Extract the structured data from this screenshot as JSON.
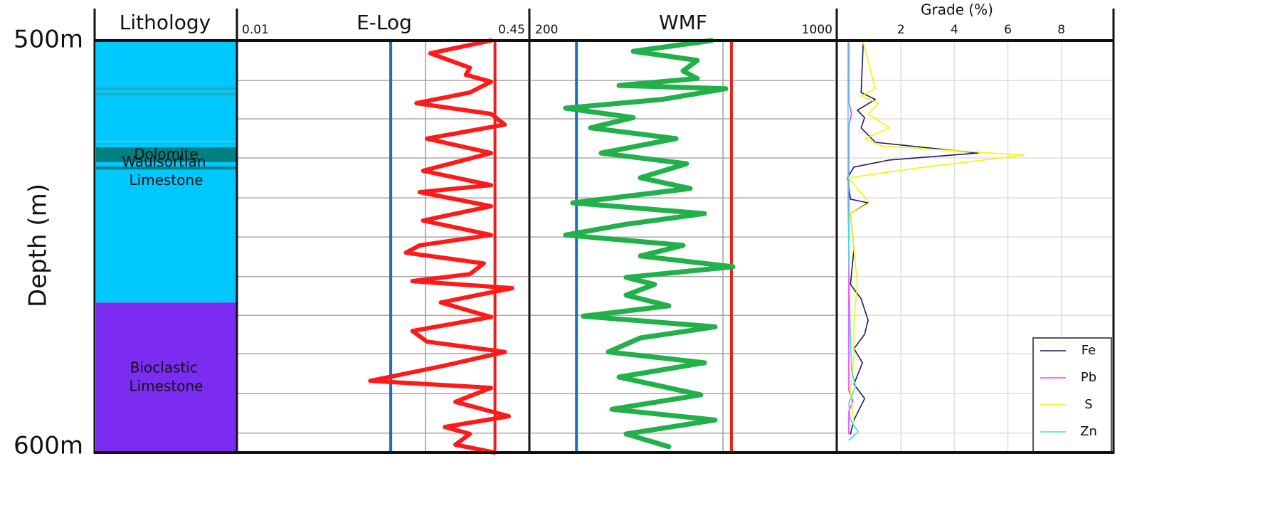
{
  "chart_data": [
    {
      "type": "lithology",
      "title": "Lithology",
      "ylabel": "Depth (m)",
      "ylim": [
        500,
        600
      ],
      "yticks": [
        {
          "value": 500,
          "label": "500m"
        },
        {
          "value": 600,
          "label": "600m"
        }
      ],
      "layers": [
        {
          "top": 500,
          "bottom": 563.6,
          "label": "Waulsortian Limestone",
          "color": "#00c8ff"
        },
        {
          "top": 511.4,
          "bottom": 511.9,
          "color": "#2aa7b8"
        },
        {
          "top": 512.8,
          "bottom": 513.3,
          "color": "#2aa7b8"
        },
        {
          "top": 524.3,
          "bottom": 524.6,
          "color": "#5cc4d8"
        },
        {
          "top": 525.9,
          "bottom": 529.5,
          "label": "Dolomite",
          "color": "#008080"
        },
        {
          "top": 530.6,
          "bottom": 531.3,
          "color": "#008080"
        },
        {
          "top": 563.6,
          "bottom": 600,
          "label": "Bioclastic Limestone",
          "color": "#7b2cf0"
        }
      ]
    },
    {
      "type": "line",
      "title": "E-Log",
      "xlim": [
        0.01,
        0.45
      ],
      "xticks": [
        0.01,
        0.45
      ],
      "ygrid": [
        509.7,
        519.0,
        528.5,
        538.2,
        547.7,
        557.3,
        566.7,
        576.0,
        585.7,
        595.3
      ],
      "cutoffs": [
        {
          "value": 0.242,
          "color": "#1f6fb5"
        },
        {
          "value": 0.295,
          "color": "#9a9a9a"
        },
        {
          "value": 0.4,
          "color": "#e8201a"
        }
      ],
      "series": [
        {
          "color": "#ff1a1a",
          "y": [
            500,
            503.1,
            506.6,
            508.3,
            510.0,
            512.6,
            515.2,
            517.8,
            520.4,
            523.8,
            527.3,
            531.6,
            535.1,
            536.8,
            540.2,
            543.7,
            547.2,
            549.7,
            551.5,
            554.1,
            556.7,
            558.4,
            560.1,
            563.6,
            567.1,
            570.5,
            573.1,
            575.6,
            579.1,
            582.6,
            584.3,
            587.7,
            591.2,
            593.8,
            595.5,
            598.1,
            600
          ],
          "values": [
            0.394,
            0.302,
            0.362,
            0.356,
            0.394,
            0.362,
            0.281,
            0.394,
            0.415,
            0.297,
            0.394,
            0.291,
            0.394,
            0.286,
            0.394,
            0.291,
            0.394,
            0.286,
            0.265,
            0.383,
            0.362,
            0.275,
            0.426,
            0.318,
            0.394,
            0.275,
            0.297,
            0.415,
            0.318,
            0.211,
            0.394,
            0.34,
            0.421,
            0.324,
            0.362,
            0.34,
            0.399
          ]
        }
      ]
    },
    {
      "type": "line",
      "title": "WMF",
      "xlim": [
        200,
        1000
      ],
      "xticks": [
        200,
        1000
      ],
      "ygrid": [
        509.7,
        519.0,
        528.5,
        538.2,
        547.7,
        557.3,
        566.7,
        576.0,
        585.7,
        595.3
      ],
      "cutoffs": [
        {
          "value": 320,
          "color": "#1f6fb5"
        },
        {
          "value": 705,
          "color": "#9a9a9a"
        },
        {
          "value": 727,
          "color": "#e8201a"
        }
      ],
      "series": [
        {
          "color": "#22b04b",
          "y": [
            500,
            502.6,
            504.8,
            507.4,
            509.2,
            510.9,
            511.7,
            514.3,
            516.4,
            518.7,
            521.2,
            523.8,
            527.3,
            529.9,
            533.3,
            535.9,
            539.4,
            542.0,
            544.6,
            547.2,
            549.7,
            552.3,
            554.9,
            557.5,
            559.2,
            561.8,
            564.4,
            566.9,
            569.5,
            572.2,
            575.6,
            578.2,
            581.7,
            586.0,
            589.5,
            592.1,
            595.5,
            598.6
          ],
          "values": [
            674.8,
            469.2,
            637.4,
            600.0,
            637.4,
            431.8,
            712.1,
            543.9,
            291.6,
            469.2,
            357.0,
            581.3,
            385.0,
            609.3,
            487.9,
            618.7,
            310.3,
            656.1,
            450.5,
            291.6,
            600.0,
            487.9,
            730.8,
            450.5,
            525.2,
            450.5,
            562.6,
            338.3,
            684.1,
            487.9,
            403.7,
            656.1,
            431.8,
            646.7,
            413.1,
            684.1,
            450.5,
            562.6
          ]
        }
      ]
    },
    {
      "type": "line",
      "title": "Grade (%)",
      "xlim": [
        -0.35,
        9.9
      ],
      "xticks": [
        2,
        4,
        6,
        8
      ],
      "grid": true,
      "legend": "lower right",
      "ygrid": [
        509.7,
        519.0,
        528.5,
        538.2,
        547.7,
        557.3,
        566.7,
        576.0,
        585.7,
        595.3
      ],
      "series": [
        {
          "name": "Fe",
          "color": "#1a1a66",
          "y": [
            500.5,
            512.6,
            514.3,
            516.9,
            518.7,
            521.2,
            524.7,
            527.3,
            529.0,
            530.7,
            533.3,
            538.5,
            539.4,
            542.0,
            550.6,
            559.2,
            562.7,
            567.9,
            571.3,
            574.8,
            578.2,
            583.4,
            586.9,
            592.1,
            595.5
          ],
          "values": [
            0.59,
            0.51,
            1.04,
            0.37,
            0.64,
            0.51,
            1.04,
            4.89,
            1.57,
            0.24,
            0.0,
            0.11,
            0.77,
            0.11,
            0.24,
            0.11,
            0.51,
            0.77,
            0.64,
            0.24,
            0.56,
            0.24,
            0.64,
            0.24,
            0.11
          ]
        },
        {
          "name": "Pb",
          "color": "#ff33ff",
          "y": [
            500.5,
            515.0,
            517.8,
            520.5,
            560.0,
            585.0,
            587.5,
            590.0,
            595.5
          ],
          "values": [
            0.05,
            0.05,
            0.15,
            0.05,
            0.05,
            0.05,
            0.2,
            0.05,
            0.05
          ]
        },
        {
          "name": "S",
          "color": "#f5f500",
          "y": [
            500.5,
            511.7,
            513.5,
            515.2,
            517.8,
            521.2,
            523.8,
            525.6,
            527.8,
            530.7,
            533.3,
            539.4,
            542.0,
            559.2,
            567.9,
            576.5,
            585.1,
            593.8
          ],
          "values": [
            0.59,
            1.04,
            0.51,
            1.17,
            0.77,
            1.57,
            0.64,
            1.3,
            6.62,
            2.9,
            0.03,
            0.82,
            0.11,
            0.37,
            0.24,
            0.24,
            0.11,
            0.24
          ]
        },
        {
          "name": "Zn",
          "color": "#33e0f0",
          "y": [
            500.5,
            540.0,
            570.0,
            580.0,
            584.0,
            588.0,
            592.0,
            595.0,
            597.0
          ],
          "values": [
            0.02,
            0.02,
            0.1,
            0.15,
            0.3,
            0.05,
            0.1,
            0.4,
            0.05
          ]
        }
      ]
    }
  ]
}
